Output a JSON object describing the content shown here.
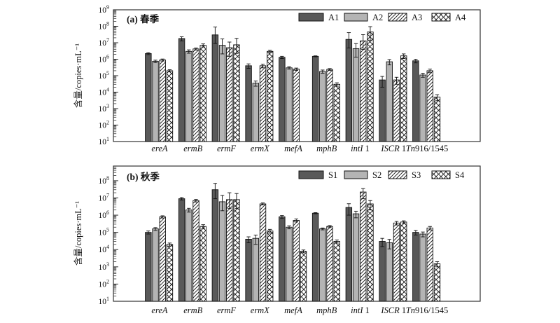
{
  "figure_name": "seasonal-gene-abundance-bar-charts",
  "styles": {
    "dark_fill": "#595959",
    "light_fill": "#b4b4b4",
    "bar_stroke": "#111111",
    "frame_color": "#333333",
    "background": "#ffffff"
  },
  "chart_data": [
    {
      "panel": "a",
      "type": "bar",
      "title": "(a) 春季",
      "ylabel": "含量/copies·mL⁻¹",
      "yscale": "log",
      "grid": false,
      "legend_position": "top-right-inside",
      "ylim": [
        10,
        1000000000
      ],
      "ytick_exponents": [
        1,
        2,
        3,
        4,
        5,
        6,
        7,
        8,
        9
      ],
      "ymax_exponent": 9,
      "categories": [
        {
          "italic": "ereA",
          "roman": ""
        },
        {
          "italic": "ermB",
          "roman": ""
        },
        {
          "italic": "ermF",
          "roman": ""
        },
        {
          "italic": "ermX",
          "roman": ""
        },
        {
          "italic": "mefA",
          "roman": ""
        },
        {
          "italic": "mphB",
          "roman": ""
        },
        {
          "italic": "intI",
          "roman": " 1"
        },
        {
          "italic": "ISCR",
          "roman": " 1"
        },
        {
          "italic": "Tn",
          "roman": "916/1545"
        }
      ],
      "series": [
        {
          "name": "A1",
          "style": "dark",
          "values": [
            2200000,
            18000000,
            30000000,
            400000,
            1300000,
            1500000,
            16000000,
            55000,
            800000
          ],
          "errors": [
            300000,
            5000000,
            60000000,
            120000,
            200000,
            100000,
            25000000,
            35000,
            200000
          ]
        },
        {
          "name": "A2",
          "style": "light",
          "values": [
            750000,
            3000000,
            7000000,
            35000,
            300000,
            180000,
            4400000,
            700000,
            110000
          ],
          "errors": [
            120000,
            700000,
            10000000,
            12000,
            50000,
            40000,
            4500000,
            250000,
            30000
          ]
        },
        {
          "name": "A3",
          "style": "diag",
          "values": [
            900000,
            4200000,
            5000000,
            400000,
            250000,
            240000,
            13000000,
            55000,
            200000
          ],
          "errors": [
            130000,
            600000,
            6000000,
            100000,
            40000,
            30000,
            18000000,
            25000,
            50000
          ]
        },
        {
          "name": "A4",
          "style": "cross",
          "values": [
            200000,
            7000000,
            7500000,
            3000000,
            null,
            30000,
            45000000,
            1600000,
            5000
          ],
          "errors": [
            30000,
            1500000,
            11000000,
            500000,
            null,
            7000,
            50000000,
            500000,
            2000
          ]
        }
      ]
    },
    {
      "panel": "b",
      "type": "bar",
      "title": "(b) 秋季",
      "ylabel": "含量/copies·mL⁻¹",
      "yscale": "log",
      "grid": false,
      "legend_position": "top-right-inside",
      "ylim": [
        10,
        700000000
      ],
      "ytick_exponents": [
        1,
        2,
        3,
        4,
        5,
        6,
        7,
        8
      ],
      "ymax_exponent": 8.85,
      "categories": [
        {
          "italic": "ereA",
          "roman": ""
        },
        {
          "italic": "ermB",
          "roman": ""
        },
        {
          "italic": "ermF",
          "roman": ""
        },
        {
          "italic": "ermX",
          "roman": ""
        },
        {
          "italic": "mefA",
          "roman": ""
        },
        {
          "italic": "mphB",
          "roman": ""
        },
        {
          "italic": "intI",
          "roman": " 1"
        },
        {
          "italic": "ISCR",
          "roman": " 1"
        },
        {
          "italic": "Tn",
          "roman": "916/1545"
        }
      ],
      "series": [
        {
          "name": "S1",
          "style": "dark",
          "values": [
            100000,
            9000000,
            30000000,
            40000,
            800000,
            1300000,
            2800000,
            30000,
            100000
          ],
          "errors": [
            20000,
            1500000,
            40000000,
            15000,
            150000,
            100000,
            1800000,
            15000,
            30000
          ]
        },
        {
          "name": "S2",
          "style": "light",
          "values": [
            160000,
            2000000,
            6000000,
            45000,
            200000,
            160000,
            1200000,
            25000,
            80000
          ],
          "errors": [
            30000,
            500000,
            8000000,
            25000,
            40000,
            20000,
            500000,
            14000,
            25000
          ]
        },
        {
          "name": "S3",
          "style": "diag",
          "values": [
            800000,
            7000000,
            8000000,
            4500000,
            500000,
            220000,
            22000000,
            350000,
            180000
          ],
          "errors": [
            120000,
            1200000,
            12000000,
            600000,
            100000,
            30000,
            13000000,
            80000,
            40000
          ]
        },
        {
          "name": "S4",
          "style": "cross",
          "values": [
            20000,
            220000,
            8000000,
            120000,
            8000,
            30000,
            4500000,
            400000,
            1500
          ],
          "errors": [
            4000,
            60000,
            10000000,
            30000,
            1500,
            6000,
            2500000,
            70000,
            500
          ]
        }
      ]
    }
  ]
}
